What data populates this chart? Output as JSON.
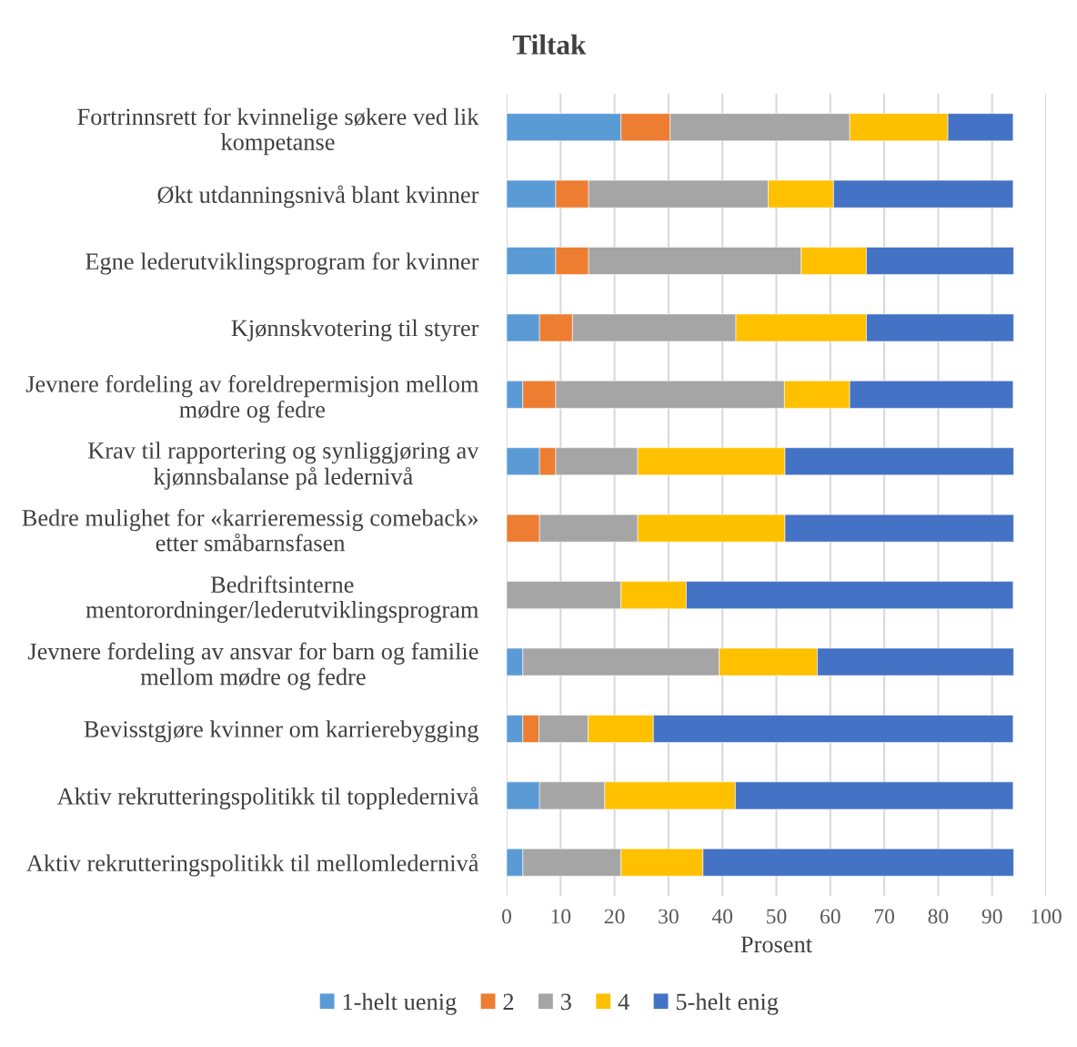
{
  "chart_data": {
    "type": "bar",
    "orientation": "horizontal",
    "stacked": true,
    "title": "Tiltak",
    "xlabel": "Prosent",
    "categories": [
      "Fortrinnsrett for kvinnelige søkere ved lik\nkompetanse",
      "Økt utdanningsnivå blant kvinner",
      "Egne lederutviklingsprogram for kvinner",
      "Kjønnskvotering til styrer",
      "Jevnere fordeling av foreldrepermisjon mellom\nmødre og fedre",
      "Krav til rapportering og synliggjøring av\nkjønnsbalanse på ledernivå",
      "Bedre mulighet for «karrieremessig comeback»\netter småbarnsfasen",
      "Bedriftsinterne\nmentorordninger/lederutviklingsprogram",
      "Jevnere fordeling av ansvar for barn og familie\nmellom mødre og fedre",
      "Bevisstgjøre kvinner om karrierebygging",
      "Aktiv rekrutteringspolitikk til toppledernivå",
      "Aktiv rekrutteringspolitikk til mellomledernivå"
    ],
    "series": [
      {
        "name": "1-helt uenig",
        "color": "#5b9bd5",
        "values": [
          21.2,
          9.1,
          9.1,
          6.1,
          3.0,
          6.1,
          0,
          0,
          3.0,
          3.0,
          6.1,
          3.0
        ]
      },
      {
        "name": "2",
        "color": "#ed7d31",
        "values": [
          9.1,
          6.1,
          6.1,
          6.1,
          6.1,
          3.0,
          6.1,
          0,
          0,
          3.0,
          0,
          0
        ]
      },
      {
        "name": "3",
        "color": "#a5a5a5",
        "values": [
          33.3,
          33.3,
          39.4,
          30.3,
          42.4,
          15.2,
          18.2,
          21.2,
          36.4,
          9.1,
          12.1,
          18.2
        ]
      },
      {
        "name": "4",
        "color": "#ffc000",
        "values": [
          18.2,
          12.1,
          12.1,
          24.2,
          12.1,
          27.3,
          27.3,
          12.1,
          18.2,
          12.1,
          24.2,
          15.2
        ]
      },
      {
        "name": "5-helt enig",
        "color": "#4472c4",
        "values": [
          12.1,
          33.3,
          27.3,
          27.3,
          30.3,
          42.4,
          42.4,
          60.6,
          36.4,
          66.7,
          51.5,
          57.6
        ]
      }
    ],
    "xlim": [
      0,
      100
    ],
    "xticks": [
      0,
      10,
      20,
      30,
      40,
      50,
      60,
      70,
      80,
      90,
      100
    ],
    "grid": "x",
    "legend": "bottom"
  }
}
